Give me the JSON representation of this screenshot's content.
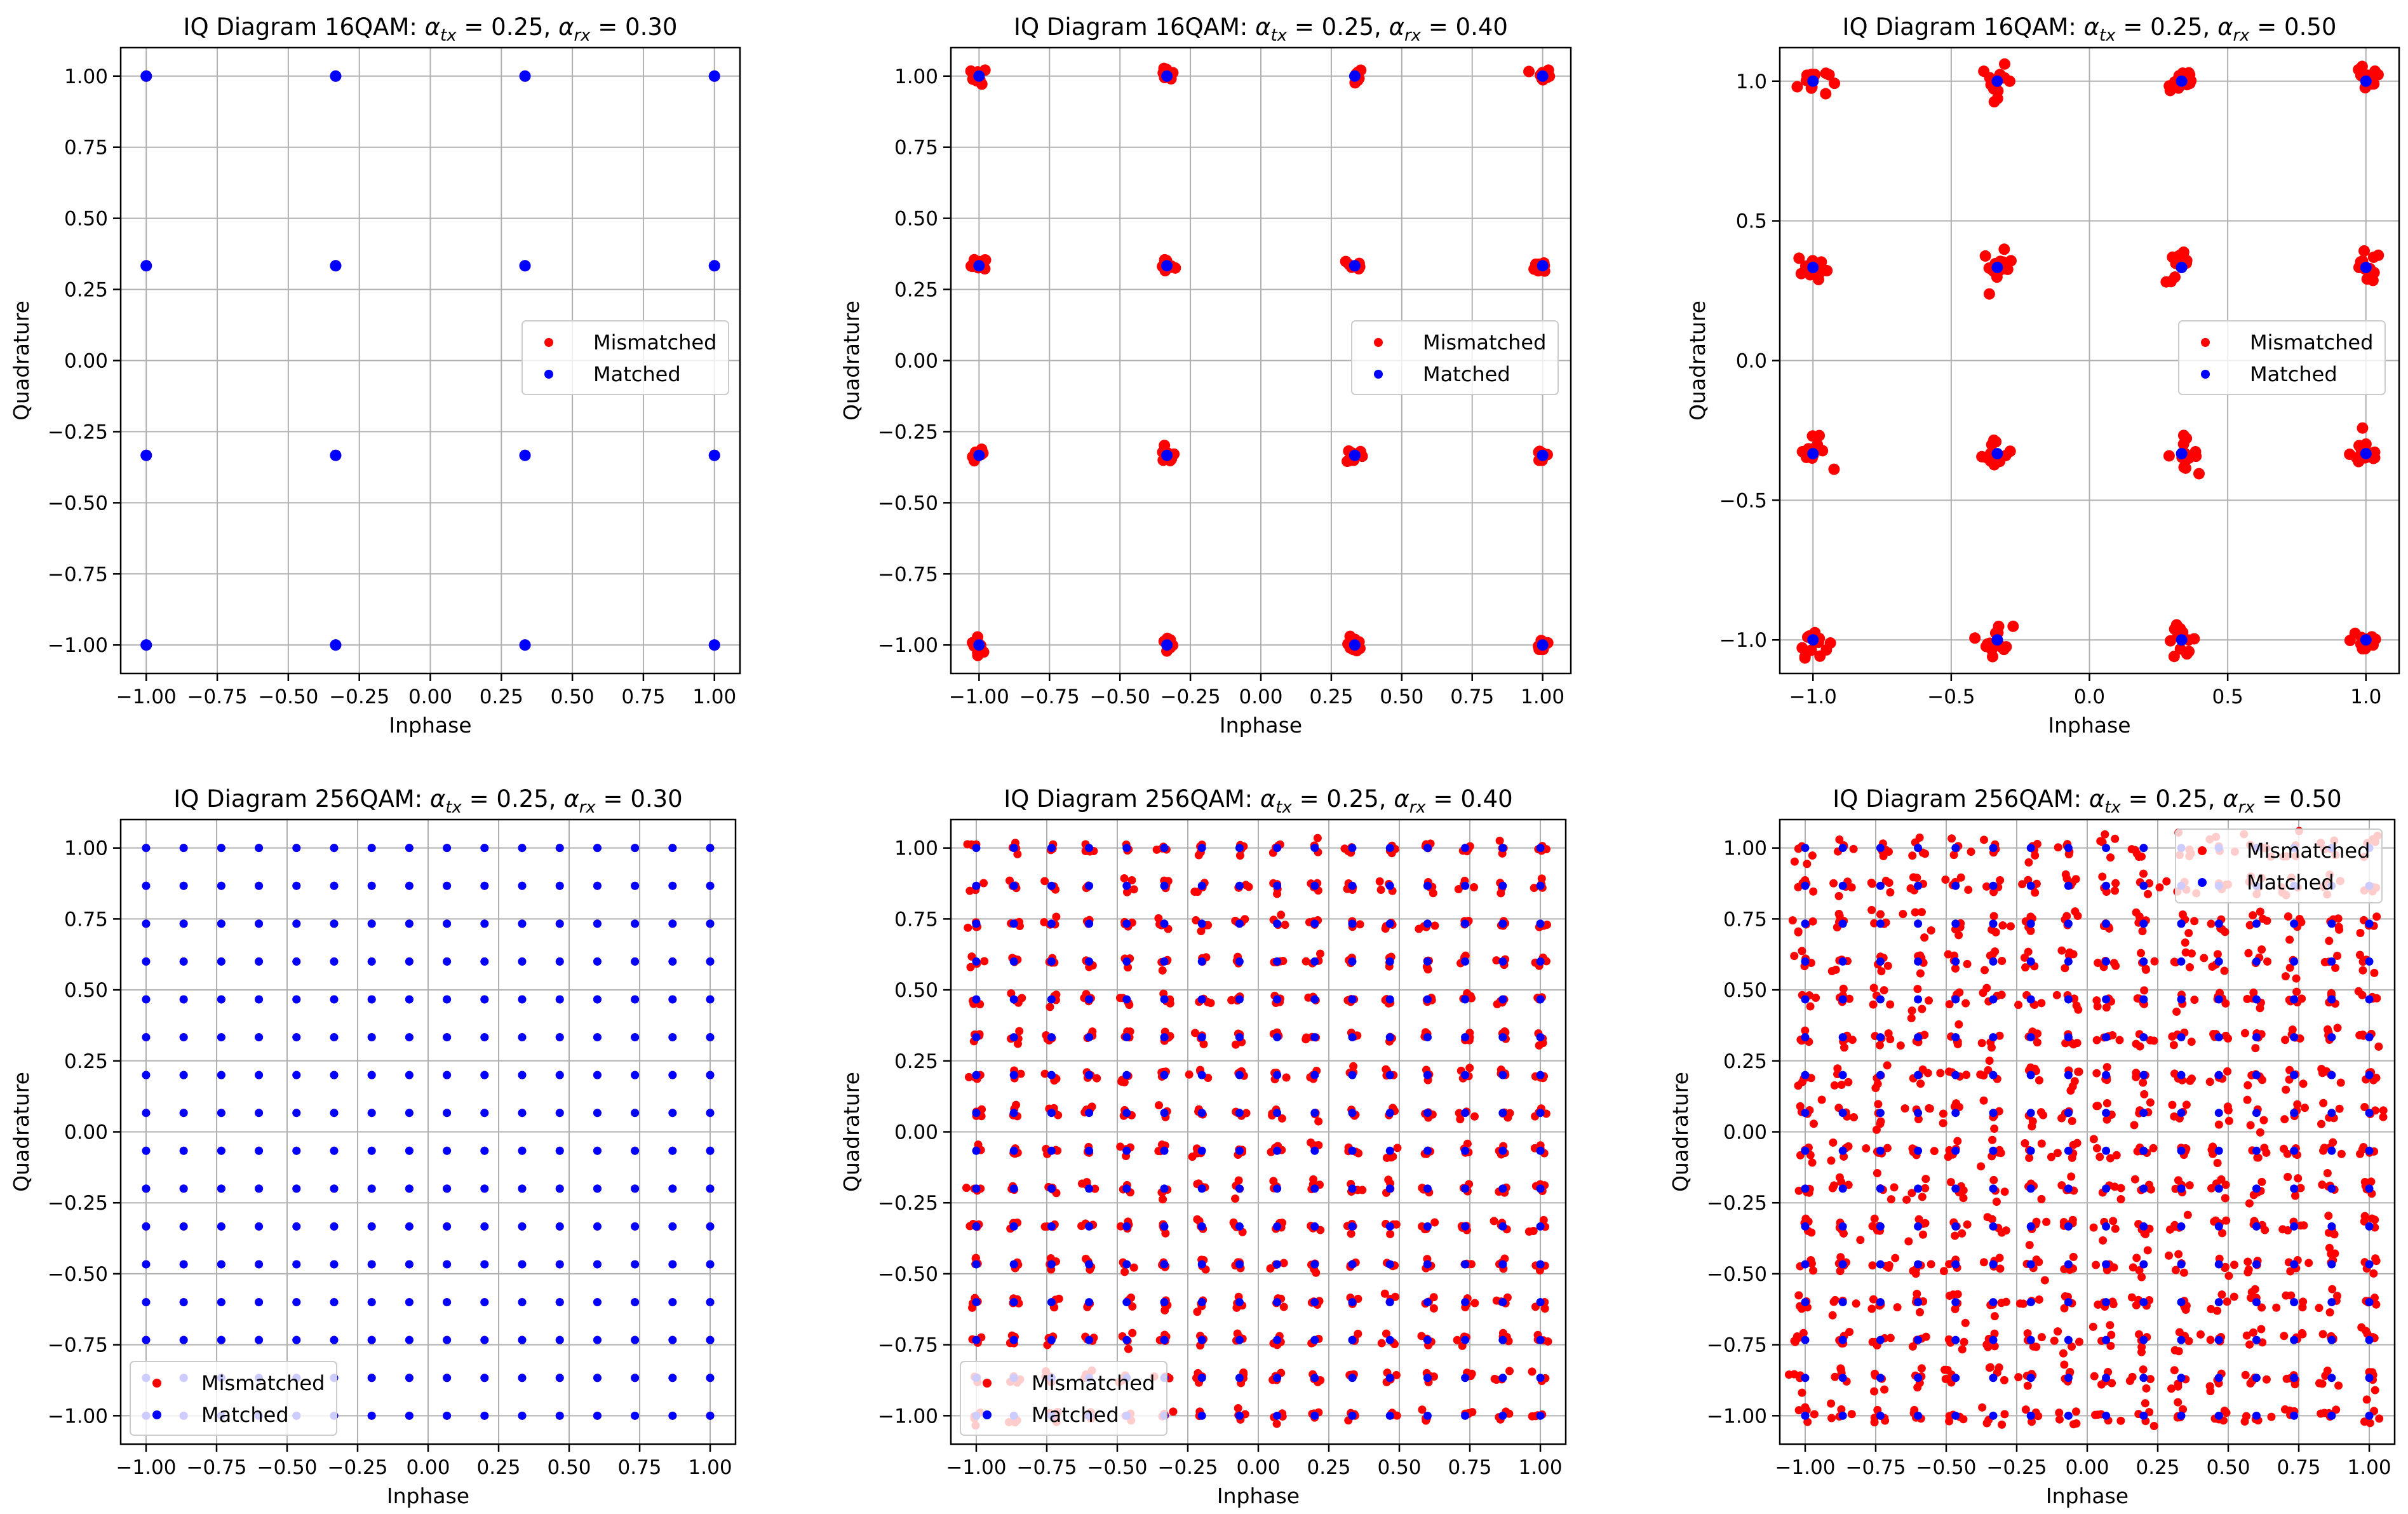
{
  "chart_data": [
    {
      "type": "scatter",
      "title": "IQ Diagram 16QAM: α_tx = 0.25, α_rx = 0.30",
      "title_parts": {
        "prefix": "IQ Diagram 16QAM: ",
        "a1": "α",
        "s1": "tx",
        "m1": " = 0.25, ",
        "a2": "α",
        "s2": "rx",
        "m2": " = 0.30"
      },
      "xlabel": "Inphase",
      "ylabel": "Quadrature",
      "xlim": [
        -1.09,
        1.09
      ],
      "ylim": [
        -1.1,
        1.1
      ],
      "xticks": [
        -1.0,
        -0.75,
        -0.5,
        -0.25,
        0.0,
        0.25,
        0.5,
        0.75,
        1.0
      ],
      "xtick_labels": [
        "−1.00",
        "−0.75",
        "−0.50",
        "−0.25",
        "0.00",
        "0.25",
        "0.50",
        "0.75",
        "1.00"
      ],
      "yticks": [
        -1.0,
        -0.75,
        -0.5,
        -0.25,
        0.0,
        0.25,
        0.5,
        0.75,
        1.0
      ],
      "ytick_labels": [
        "−1.00",
        "−0.75",
        "−0.50",
        "−0.25",
        "0.00",
        "0.25",
        "0.50",
        "0.75",
        "1.00"
      ],
      "grid": true,
      "legend_position": "center-right",
      "constellation_levels": [
        -1.0,
        -0.3333,
        0.3333,
        1.0
      ],
      "mismatched_spread": 0.0,
      "series": [
        {
          "name": "Mismatched",
          "color": "#ff0000",
          "points_per_symbol": 1
        },
        {
          "name": "Matched",
          "color": "#0000ff",
          "points_per_symbol": 1
        }
      ]
    },
    {
      "type": "scatter",
      "title": "IQ Diagram 16QAM: α_tx = 0.25, α_rx = 0.40",
      "title_parts": {
        "prefix": "IQ Diagram 16QAM: ",
        "a1": "α",
        "s1": "tx",
        "m1": " = 0.25, ",
        "a2": "α",
        "s2": "rx",
        "m2": " = 0.40"
      },
      "xlabel": "Inphase",
      "ylabel": "Quadrature",
      "xlim": [
        -1.1,
        1.1
      ],
      "ylim": [
        -1.1,
        1.1
      ],
      "xticks": [
        -1.0,
        -0.75,
        -0.5,
        -0.25,
        0.0,
        0.25,
        0.5,
        0.75,
        1.0
      ],
      "xtick_labels": [
        "−1.00",
        "−0.75",
        "−0.50",
        "−0.25",
        "0.00",
        "0.25",
        "0.50",
        "0.75",
        "1.00"
      ],
      "yticks": [
        -1.0,
        -0.75,
        -0.5,
        -0.25,
        0.0,
        0.25,
        0.5,
        0.75,
        1.0
      ],
      "ytick_labels": [
        "−1.00",
        "−0.75",
        "−0.50",
        "−0.25",
        "0.00",
        "0.25",
        "0.50",
        "0.75",
        "1.00"
      ],
      "grid": true,
      "legend_position": "center-right",
      "constellation_levels": [
        -1.0,
        -0.3333,
        0.3333,
        1.0
      ],
      "mismatched_spread": 0.014,
      "series": [
        {
          "name": "Mismatched",
          "color": "#ff0000",
          "points_per_symbol": 10
        },
        {
          "name": "Matched",
          "color": "#0000ff",
          "points_per_symbol": 1
        }
      ]
    },
    {
      "type": "scatter",
      "title": "IQ Diagram 16QAM: α_tx = 0.25, α_rx = 0.50",
      "title_parts": {
        "prefix": "IQ Diagram 16QAM: ",
        "a1": "α",
        "s1": "tx",
        "m1": " = 0.25, ",
        "a2": "α",
        "s2": "rx",
        "m2": " = 0.50"
      },
      "xlabel": "Inphase",
      "ylabel": "Quadrature",
      "xlim": [
        -1.12,
        1.12
      ],
      "ylim": [
        -1.12,
        1.12
      ],
      "xticks": [
        -1.0,
        -0.5,
        0.0,
        0.5,
        1.0
      ],
      "xtick_labels": [
        "−1.0",
        "−0.5",
        "0.0",
        "0.5",
        "1.0"
      ],
      "yticks": [
        -1.0,
        -0.5,
        0.0,
        0.5,
        1.0
      ],
      "ytick_labels": [
        "−1.0",
        "−0.5",
        "0.0",
        "0.5",
        "1.0"
      ],
      "grid": true,
      "legend_position": "center-right",
      "constellation_levels": [
        -1.0,
        -0.3333,
        0.3333,
        1.0
      ],
      "mismatched_spread": 0.028,
      "series": [
        {
          "name": "Mismatched",
          "color": "#ff0000",
          "points_per_symbol": 14
        },
        {
          "name": "Matched",
          "color": "#0000ff",
          "points_per_symbol": 1
        }
      ]
    },
    {
      "type": "scatter",
      "title": "IQ Diagram 256QAM: α_tx = 0.25, α_rx = 0.30",
      "title_parts": {
        "prefix": "IQ Diagram 256QAM: ",
        "a1": "α",
        "s1": "tx",
        "m1": " = 0.25, ",
        "a2": "α",
        "s2": "rx",
        "m2": " = 0.30"
      },
      "xlabel": "Inphase",
      "ylabel": "Quadrature",
      "xlim": [
        -1.09,
        1.09
      ],
      "ylim": [
        -1.1,
        1.1
      ],
      "xticks": [
        -1.0,
        -0.75,
        -0.5,
        -0.25,
        0.0,
        0.25,
        0.5,
        0.75,
        1.0
      ],
      "xtick_labels": [
        "−1.00",
        "−0.75",
        "−0.50",
        "−0.25",
        "0.00",
        "0.25",
        "0.50",
        "0.75",
        "1.00"
      ],
      "yticks": [
        -1.0,
        -0.75,
        -0.5,
        -0.25,
        0.0,
        0.25,
        0.5,
        0.75,
        1.0
      ],
      "ytick_labels": [
        "−1.00",
        "−0.75",
        "−0.50",
        "−0.25",
        "0.00",
        "0.25",
        "0.50",
        "0.75",
        "1.00"
      ],
      "grid": true,
      "legend_position": "lower-left",
      "constellation_levels": [
        -1.0,
        -0.8667,
        -0.7333,
        -0.6,
        -0.4667,
        -0.3333,
        -0.2,
        -0.0667,
        0.0667,
        0.2,
        0.3333,
        0.4667,
        0.6,
        0.7333,
        0.8667,
        1.0
      ],
      "mismatched_spread": 0.0,
      "series": [
        {
          "name": "Mismatched",
          "color": "#ff0000",
          "points_per_symbol": 1
        },
        {
          "name": "Matched",
          "color": "#0000ff",
          "points_per_symbol": 1
        }
      ]
    },
    {
      "type": "scatter",
      "title": "IQ Diagram 256QAM: α_tx = 0.25, α_rx = 0.40",
      "title_parts": {
        "prefix": "IQ Diagram 256QAM: ",
        "a1": "α",
        "s1": "tx",
        "m1": " = 0.25, ",
        "a2": "α",
        "s2": "rx",
        "m2": " = 0.40"
      },
      "xlabel": "Inphase",
      "ylabel": "Quadrature",
      "xlim": [
        -1.09,
        1.09
      ],
      "ylim": [
        -1.1,
        1.1
      ],
      "xticks": [
        -1.0,
        -0.75,
        -0.5,
        -0.25,
        0.0,
        0.25,
        0.5,
        0.75,
        1.0
      ],
      "xtick_labels": [
        "−1.00",
        "−0.75",
        "−0.50",
        "−0.25",
        "0.00",
        "0.25",
        "0.50",
        "0.75",
        "1.00"
      ],
      "yticks": [
        -1.0,
        -0.75,
        -0.5,
        -0.25,
        0.0,
        0.25,
        0.5,
        0.75,
        1.0
      ],
      "ytick_labels": [
        "−1.00",
        "−0.75",
        "−0.50",
        "−0.25",
        "0.00",
        "0.25",
        "0.50",
        "0.75",
        "1.00"
      ],
      "grid": true,
      "legend_position": "lower-left",
      "constellation_levels": [
        -1.0,
        -0.8667,
        -0.7333,
        -0.6,
        -0.4667,
        -0.3333,
        -0.2,
        -0.0667,
        0.0667,
        0.2,
        0.3333,
        0.4667,
        0.6,
        0.7333,
        0.8667,
        1.0
      ],
      "mismatched_spread": 0.012,
      "series": [
        {
          "name": "Mismatched",
          "color": "#ff0000",
          "points_per_symbol": 4
        },
        {
          "name": "Matched",
          "color": "#0000ff",
          "points_per_symbol": 1
        }
      ]
    },
    {
      "type": "scatter",
      "title": "IQ Diagram 256QAM: α_tx = 0.25, α_rx = 0.50",
      "title_parts": {
        "prefix": "IQ Diagram 256QAM: ",
        "a1": "α",
        "s1": "tx",
        "m1": " = 0.25, ",
        "a2": "α",
        "s2": "rx",
        "m2": " = 0.50"
      },
      "xlabel": "Inphase",
      "ylabel": "Quadrature",
      "xlim": [
        -1.09,
        1.09
      ],
      "ylim": [
        -1.1,
        1.1
      ],
      "xticks": [
        -1.0,
        -0.75,
        -0.5,
        -0.25,
        0.0,
        0.25,
        0.5,
        0.75,
        1.0
      ],
      "xtick_labels": [
        "−1.00",
        "−0.75",
        "−0.50",
        "−0.25",
        "0.00",
        "0.25",
        "0.50",
        "0.75",
        "1.00"
      ],
      "yticks": [
        -1.0,
        -0.75,
        -0.5,
        -0.25,
        0.0,
        0.25,
        0.5,
        0.75,
        1.0
      ],
      "ytick_labels": [
        "−1.00",
        "−0.75",
        "−0.50",
        "−0.25",
        "0.00",
        "0.25",
        "0.50",
        "0.75",
        "1.00"
      ],
      "grid": true,
      "legend_position": "upper-right",
      "constellation_levels": [
        -1.0,
        -0.8667,
        -0.7333,
        -0.6,
        -0.4667,
        -0.3333,
        -0.2,
        -0.0667,
        0.0667,
        0.2,
        0.3333,
        0.4667,
        0.6,
        0.7333,
        0.8667,
        1.0
      ],
      "mismatched_spread": 0.022,
      "series": [
        {
          "name": "Mismatched",
          "color": "#ff0000",
          "points_per_symbol": 5
        },
        {
          "name": "Matched",
          "color": "#0000ff",
          "points_per_symbol": 1
        }
      ]
    }
  ]
}
